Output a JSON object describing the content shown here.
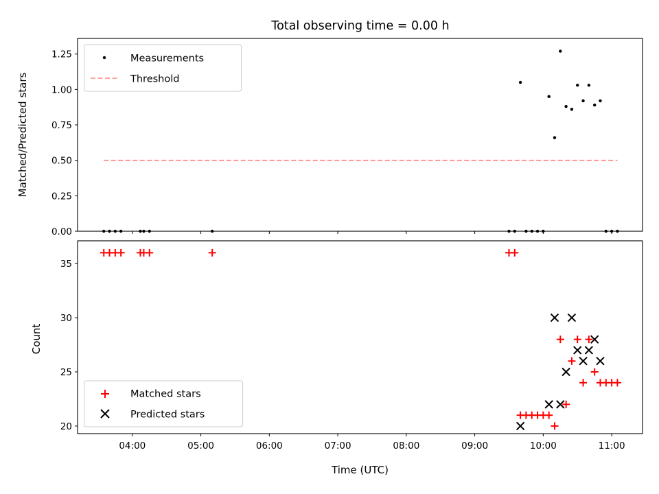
{
  "chart_data": [
    {
      "type": "scatter",
      "panel": "top",
      "title": "Total observing time = 0.00 h",
      "xlabel": "",
      "ylabel": "Matched/Predicted stars",
      "xlim": [
        "03:12",
        "11:27"
      ],
      "ylim": [
        0,
        1.36
      ],
      "yticks": [
        0.0,
        0.25,
        0.5,
        0.75,
        1.0,
        1.25
      ],
      "ytick_labels": [
        "0.00",
        "0.25",
        "0.50",
        "0.75",
        "1.00",
        "1.25"
      ],
      "xticks": [
        "04:00",
        "05:00",
        "06:00",
        "07:00",
        "08:00",
        "09:00",
        "10:00",
        "11:00"
      ],
      "grid": false,
      "legend_location": "upper left",
      "series": [
        {
          "name": "Measurements",
          "kind": "scatter",
          "marker": "dot",
          "color": "#000000",
          "points": [
            [
              "03:35",
              0.0
            ],
            [
              "03:40",
              0.0
            ],
            [
              "03:45",
              0.0
            ],
            [
              "03:50",
              0.0
            ],
            [
              "04:07",
              0.0
            ],
            [
              "04:10",
              0.0
            ],
            [
              "04:15",
              0.0
            ],
            [
              "05:10",
              0.0
            ],
            [
              "09:30",
              0.0
            ],
            [
              "09:35",
              0.0
            ],
            [
              "09:40",
              1.05
            ],
            [
              "09:45",
              0.0
            ],
            [
              "09:50",
              0.0
            ],
            [
              "09:55",
              0.0
            ],
            [
              "10:00",
              0.0
            ],
            [
              "10:05",
              0.95
            ],
            [
              "10:10",
              0.66
            ],
            [
              "10:15",
              1.27
            ],
            [
              "10:20",
              0.88
            ],
            [
              "10:25",
              0.86
            ],
            [
              "10:30",
              1.03
            ],
            [
              "10:35",
              0.92
            ],
            [
              "10:40",
              1.03
            ],
            [
              "10:45",
              0.89
            ],
            [
              "10:50",
              0.92
            ],
            [
              "10:55",
              0.0
            ],
            [
              "11:00",
              0.0
            ],
            [
              "11:05",
              0.0
            ]
          ]
        },
        {
          "name": "Threshold",
          "kind": "line",
          "style": "dashed",
          "color": "#ff8080",
          "x_range": [
            "03:35",
            "11:05"
          ],
          "value": 0.5
        }
      ]
    },
    {
      "type": "scatter",
      "panel": "bottom",
      "title": "",
      "xlabel": "Time (UTC)",
      "ylabel": "Count",
      "xlim": [
        "03:12",
        "11:27"
      ],
      "ylim": [
        19.3,
        37.1
      ],
      "yticks": [
        20,
        25,
        30,
        35
      ],
      "ytick_labels": [
        "20",
        "25",
        "30",
        "35"
      ],
      "xticks": [
        "04:00",
        "05:00",
        "06:00",
        "07:00",
        "08:00",
        "09:00",
        "10:00",
        "11:00"
      ],
      "xtick_labels": [
        "04:00",
        "05:00",
        "06:00",
        "07:00",
        "08:00",
        "09:00",
        "10:00",
        "11:00"
      ],
      "grid": false,
      "legend_location": "lower left",
      "series": [
        {
          "name": "Matched stars",
          "marker": "plus",
          "color": "#ff0000",
          "points": [
            [
              "03:35",
              36
            ],
            [
              "03:40",
              36
            ],
            [
              "03:45",
              36
            ],
            [
              "03:50",
              36
            ],
            [
              "04:07",
              36
            ],
            [
              "04:10",
              36
            ],
            [
              "04:15",
              36
            ],
            [
              "05:10",
              36
            ],
            [
              "09:30",
              36
            ],
            [
              "09:35",
              36
            ],
            [
              "09:40",
              21
            ],
            [
              "09:45",
              21
            ],
            [
              "09:50",
              21
            ],
            [
              "09:55",
              21
            ],
            [
              "10:00",
              21
            ],
            [
              "10:05",
              21
            ],
            [
              "10:10",
              20
            ],
            [
              "10:15",
              28
            ],
            [
              "10:20",
              22
            ],
            [
              "10:25",
              26
            ],
            [
              "10:30",
              28
            ],
            [
              "10:35",
              24
            ],
            [
              "10:40",
              28
            ],
            [
              "10:45",
              25
            ],
            [
              "10:50",
              24
            ],
            [
              "10:55",
              24
            ],
            [
              "11:00",
              24
            ],
            [
              "11:05",
              24
            ]
          ]
        },
        {
          "name": "Predicted stars",
          "marker": "x",
          "color": "#000000",
          "points": [
            [
              "09:40",
              20
            ],
            [
              "10:05",
              22
            ],
            [
              "10:10",
              30
            ],
            [
              "10:15",
              22
            ],
            [
              "10:20",
              25
            ],
            [
              "10:25",
              30
            ],
            [
              "10:30",
              27
            ],
            [
              "10:35",
              26
            ],
            [
              "10:40",
              27
            ],
            [
              "10:45",
              28
            ],
            [
              "10:50",
              26
            ]
          ]
        }
      ]
    }
  ]
}
